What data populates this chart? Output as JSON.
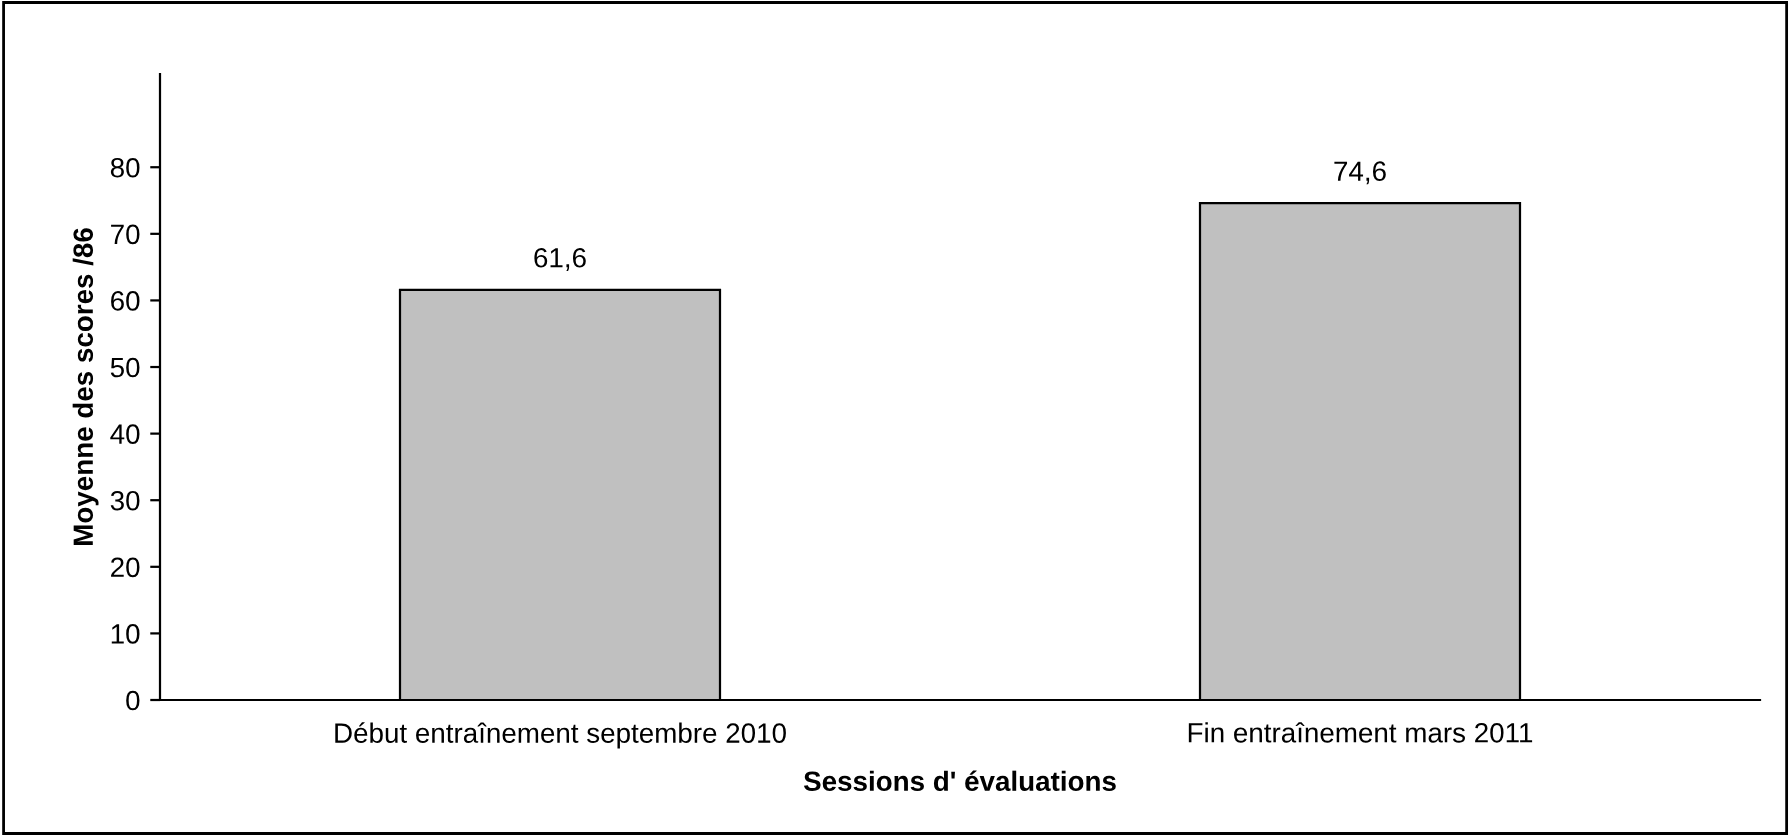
{
  "chart_data": {
    "type": "bar",
    "xlabel": "Sessions d' évaluations",
    "ylabel": "Moyenne des scores /86",
    "categories": [
      "Début entraînement septembre 2010",
      "Fin entraînement mars 2011"
    ],
    "values": [
      61.6,
      74.6
    ],
    "value_labels": [
      "61,6",
      "74,6"
    ],
    "color": "#c0c0c0",
    "ylim": [
      0,
      94
    ],
    "yticks": [
      0,
      10,
      20,
      30,
      40,
      50,
      60,
      70,
      80
    ],
    "grid": false,
    "legend": false
  }
}
